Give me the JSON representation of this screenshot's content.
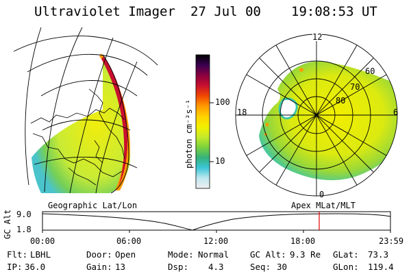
{
  "header": {
    "instrument": "Ultraviolet Imager",
    "date": "27 Jul 00",
    "time": "19:08:53 UT"
  },
  "colorbar": {
    "unit_label": "photon cm⁻²s⁻¹",
    "tick_labels": [
      "100",
      "10"
    ],
    "colors": [
      "#eeeeee",
      "#bfe8f0",
      "#3cc6d8",
      "#36b27a",
      "#7cd23c",
      "#c6ea2a",
      "#f4f000",
      "#ffd200",
      "#ff9a00",
      "#f04800",
      "#c8102e",
      "#8a0040",
      "#3a0050",
      "#000000"
    ]
  },
  "left_map": {
    "caption": "Geographic Lat/Lon"
  },
  "right_map": {
    "caption": "Apex MLat/MLT",
    "mlt_labels": {
      "top": "12",
      "left": "18",
      "right": "6",
      "bottom": "0"
    },
    "lat_labels": [
      "60",
      "70",
      "80"
    ]
  },
  "altitude_plot": {
    "ylabel": "GC Alt",
    "y_ticks": [
      "9.0",
      "1.8"
    ],
    "x_ticks": [
      "00:00",
      "06:00",
      "12:00",
      "18:00",
      "23:59"
    ],
    "marker_color": "#e00000"
  },
  "info_rows": [
    [
      {
        "label": "Flt:",
        "value": "LBHL"
      },
      {
        "label": "Door:",
        "value": "Open"
      },
      {
        "label": "Mode:",
        "value": "Normal"
      },
      {
        "label": "GC Alt:",
        "value": "9.3 Re"
      },
      {
        "label": "GLat:",
        "value": "73.3"
      }
    ],
    [
      {
        "label": "IP:",
        "value": "36.0"
      },
      {
        "label": "Gain:",
        "value": "13"
      },
      {
        "label": "Dsp:",
        "value": "4.3"
      },
      {
        "label": "Seq:",
        "value": "30"
      },
      {
        "label": "GLon:",
        "value": "119.4"
      }
    ]
  ]
}
